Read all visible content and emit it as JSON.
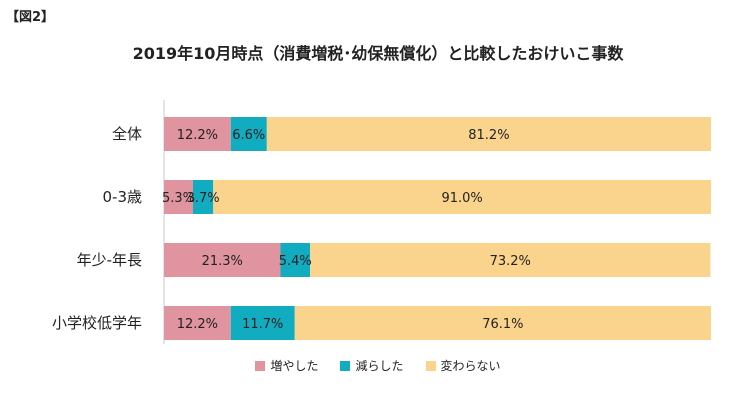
{
  "figure_label": "【図2】",
  "chart_data": {
    "type": "bar",
    "orientation": "horizontal",
    "stacked": true,
    "title": "2019年10月時点（消費増税･幼保無償化）と比較したおけいこ事数",
    "xlabel": "",
    "ylabel": "",
    "xlim": [
      0,
      100
    ],
    "categories": [
      "全体",
      "0-3歳",
      "年少-年長",
      "小学校低学年"
    ],
    "series": [
      {
        "name": "増やした",
        "color": "#e0949f",
        "values": [
          12.2,
          5.3,
          21.3,
          12.2
        ],
        "labels": [
          "12.2%",
          "5.3%",
          "21.3%",
          "12.2%"
        ]
      },
      {
        "name": "減らした",
        "color": "#12acc0",
        "values": [
          6.6,
          3.7,
          5.4,
          11.7
        ],
        "labels": [
          "6.6%",
          "3.7%",
          "5.4%",
          "11.7%"
        ]
      },
      {
        "name": "変わらない",
        "color": "#fad38d",
        "values": [
          81.2,
          91.0,
          73.2,
          76.1
        ],
        "labels": [
          "81.2%",
          "91.0%",
          "73.2%",
          "76.1%"
        ]
      }
    ],
    "grid": false,
    "legend_position": "bottom"
  }
}
